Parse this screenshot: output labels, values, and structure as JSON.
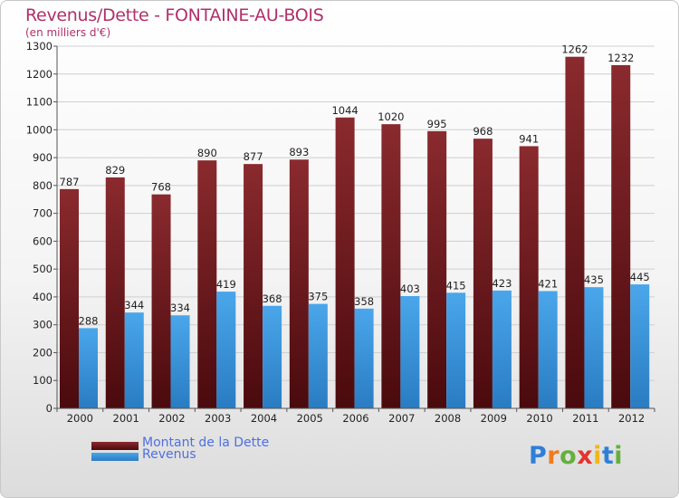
{
  "header": {
    "title": "Revenus/Dette - FONTAINE-AU-BOIS",
    "subtitle": "(en milliers d'€)"
  },
  "logo": {
    "letters": [
      "P",
      "r",
      "o",
      "x",
      "i",
      "t",
      "i"
    ],
    "colors": [
      "#2f7fd8",
      "#f07a1e",
      "#63b13c",
      "#e3342f",
      "#f2b61b",
      "#2f7fd8",
      "#63b13c"
    ]
  },
  "chart_data": {
    "type": "bar",
    "title": "Revenus/Dette - FONTAINE-AU-BOIS",
    "subtitle": "(en milliers d'€)",
    "xlabel": "",
    "ylabel": "",
    "categories": [
      "2000",
      "2001",
      "2002",
      "2003",
      "2004",
      "2005",
      "2006",
      "2007",
      "2008",
      "2009",
      "2010",
      "2011",
      "2012"
    ],
    "ylim": [
      0,
      1300
    ],
    "yticks": [
      0,
      100,
      200,
      300,
      400,
      500,
      600,
      700,
      800,
      900,
      1000,
      1100,
      1200,
      1300
    ],
    "grid": true,
    "legend_position": "bottom-left",
    "series": [
      {
        "name": "Montant de la Dette",
        "color": "#7a1a1f",
        "values": [
          787,
          829,
          768,
          890,
          877,
          893,
          1044,
          1020,
          995,
          968,
          941,
          1262,
          1232
        ]
      },
      {
        "name": "Revenus",
        "color": "#3d9be0",
        "values": [
          288,
          344,
          334,
          419,
          368,
          375,
          358,
          403,
          415,
          423,
          421,
          435,
          445
        ]
      }
    ]
  }
}
